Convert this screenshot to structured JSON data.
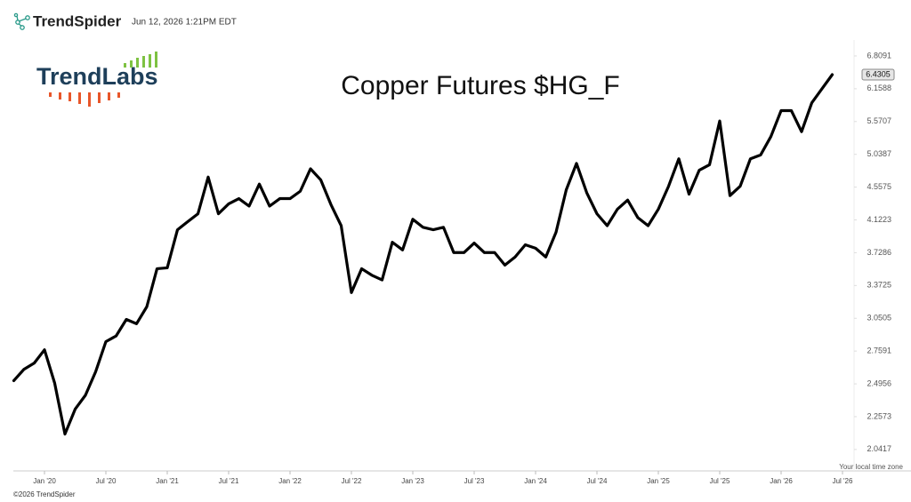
{
  "header": {
    "brand": "TrendSpider",
    "timestamp": "Jun 12, 2026 1:21PM EDT"
  },
  "logo": "TrendLabs",
  "chart_data": {
    "type": "line",
    "title": "Copper Futures $HG_F",
    "log_scale": true,
    "grid": false,
    "color": "#000000",
    "x": [
      "2019-10",
      "2019-11",
      "2019-12",
      "2020-01",
      "2020-02",
      "2020-03",
      "2020-04",
      "2020-05",
      "2020-06",
      "2020-07",
      "2020-08",
      "2020-09",
      "2020-10",
      "2020-11",
      "2020-12",
      "2021-01",
      "2021-02",
      "2021-03",
      "2021-04",
      "2021-05",
      "2021-06",
      "2021-07",
      "2021-08",
      "2021-09",
      "2021-10",
      "2021-11",
      "2021-12",
      "2022-01",
      "2022-02",
      "2022-03",
      "2022-04",
      "2022-05",
      "2022-06",
      "2022-07",
      "2022-08",
      "2022-09",
      "2022-10",
      "2022-11",
      "2022-12",
      "2023-01",
      "2023-02",
      "2023-03",
      "2023-04",
      "2023-05",
      "2023-06",
      "2023-07",
      "2023-08",
      "2023-09",
      "2023-10",
      "2023-11",
      "2023-12",
      "2024-01",
      "2024-02",
      "2024-03",
      "2024-04",
      "2024-05",
      "2024-06",
      "2024-07",
      "2024-08",
      "2024-09",
      "2024-10",
      "2024-11",
      "2024-12",
      "2025-01",
      "2025-02",
      "2025-03",
      "2025-04",
      "2025-05",
      "2025-06",
      "2025-07",
      "2025-08",
      "2025-09",
      "2025-10",
      "2025-11",
      "2025-12",
      "2026-01",
      "2026-02",
      "2026-03",
      "2026-04",
      "2026-05",
      "2026-06"
    ],
    "values": [
      2.52,
      2.61,
      2.66,
      2.77,
      2.5,
      2.14,
      2.31,
      2.41,
      2.59,
      2.84,
      2.89,
      3.04,
      3.0,
      3.16,
      3.55,
      3.56,
      4.0,
      4.1,
      4.2,
      4.7,
      4.2,
      4.33,
      4.4,
      4.3,
      4.6,
      4.3,
      4.4,
      4.4,
      4.5,
      4.82,
      4.66,
      4.32,
      4.05,
      3.3,
      3.55,
      3.48,
      3.43,
      3.85,
      3.76,
      4.13,
      4.03,
      4.0,
      4.03,
      3.73,
      3.73,
      3.84,
      3.73,
      3.73,
      3.59,
      3.68,
      3.82,
      3.78,
      3.68,
      3.97,
      4.52,
      4.9,
      4.48,
      4.2,
      4.05,
      4.26,
      4.38,
      4.15,
      4.05,
      4.26,
      4.57,
      4.97,
      4.46,
      4.8,
      4.88,
      5.58,
      4.44,
      4.57,
      4.97,
      5.03,
      5.32,
      5.76,
      5.76,
      5.4,
      5.9,
      6.16,
      6.4305
    ],
    "xlim": [
      "2019-10",
      "2026-07"
    ],
    "xticks": [
      {
        "value": "2020-01",
        "label": "Jan '20"
      },
      {
        "value": "2020-07",
        "label": "Jul '20"
      },
      {
        "value": "2021-01",
        "label": "Jan '21"
      },
      {
        "value": "2021-07",
        "label": "Jul '21"
      },
      {
        "value": "2022-01",
        "label": "Jan '22"
      },
      {
        "value": "2022-07",
        "label": "Jul '22"
      },
      {
        "value": "2023-01",
        "label": "Jan '23"
      },
      {
        "value": "2023-07",
        "label": "Jul '23"
      },
      {
        "value": "2024-01",
        "label": "Jan '24"
      },
      {
        "value": "2024-07",
        "label": "Jul '24"
      },
      {
        "value": "2025-01",
        "label": "Jan '25"
      },
      {
        "value": "2025-07",
        "label": "Jul '25"
      },
      {
        "value": "2026-01",
        "label": "Jan '26"
      },
      {
        "value": "2026-07",
        "label": "Jul '26"
      }
    ],
    "ylim": [
      1.912,
      7.15
    ],
    "yticks": [
      2.0417,
      2.2573,
      2.4956,
      2.7591,
      3.0505,
      3.3725,
      3.7286,
      4.1223,
      4.5575,
      5.0387,
      5.5707,
      6.1588,
      6.8091
    ],
    "time_zone_note": "Your local time zone"
  },
  "footer": "©2026 TrendSpider"
}
